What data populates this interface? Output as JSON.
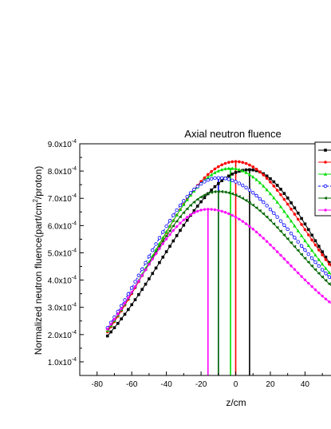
{
  "chart_data": {
    "type": "line",
    "title": "Axial neutron fluence",
    "xlabel": "z/cm",
    "ylabel_main": "Normalized neutron fluence(part/cm",
    "ylabel_sup": "2",
    "ylabel_tail": "/proton)",
    "xlim": [
      -90,
      55
    ],
    "ylim": [
      0.5,
      9.0
    ],
    "y_exponent": "-4",
    "x_ticks": [
      -80,
      -60,
      -40,
      -20,
      0,
      20,
      40
    ],
    "y_ticks": [
      {
        "value": 1.0,
        "mantissa": "1.0x10"
      },
      {
        "value": 2.0,
        "mantissa": "2.0x10"
      },
      {
        "value": 3.0,
        "mantissa": "3.0x10"
      },
      {
        "value": 4.0,
        "mantissa": "4.0x10"
      },
      {
        "value": 5.0,
        "mantissa": "5.0x10"
      },
      {
        "value": 6.0,
        "mantissa": "6.0x10"
      },
      {
        "value": 7.0,
        "mantissa": "7.0x10"
      },
      {
        "value": 8.0,
        "mantissa": "8.0x10"
      },
      {
        "value": 9.0,
        "mantissa": "9.0x10"
      }
    ],
    "grid": false,
    "legend_position": "top-right",
    "series": [
      {
        "color": "#000000",
        "marker": "square",
        "peak_z": 8,
        "peak": 8.05,
        "start_value": 1.95,
        "end_value": 4.55,
        "sigma_left": 51,
        "sigma_right": 36,
        "dashed": false
      },
      {
        "color": "#ff0000",
        "marker": "circle",
        "peak_z": 0,
        "peak": 8.35,
        "start_value": 2.1,
        "end_value": 4.5,
        "sigma_left": 49,
        "sigma_right": 39,
        "dashed": false
      },
      {
        "color": "#00dd00",
        "marker": "triangle",
        "peak_z": -3,
        "peak": 8.1,
        "start_value": 2.15,
        "end_value": 4.2,
        "sigma_left": 47,
        "sigma_right": 39,
        "dashed": false
      },
      {
        "color": "#0000ff",
        "marker": "circle-open",
        "peak_z": -10,
        "peak": 7.75,
        "start_value": 2.25,
        "end_value": 4.05,
        "sigma_left": 43,
        "sigma_right": 44,
        "dashed": true
      },
      {
        "color": "#006600",
        "marker": "triangle-left",
        "peak_z": -10,
        "peak": 7.25,
        "start_value": 2.2,
        "end_value": 3.8,
        "sigma_left": 43,
        "sigma_right": 45,
        "dashed": false
      },
      {
        "color": "#ff00ff",
        "marker": "star",
        "peak_z": -16,
        "peak": 6.6,
        "start_value": 2.2,
        "end_value": 3.15,
        "sigma_left": 41,
        "sigma_right": 46,
        "dashed": false
      }
    ],
    "x_start": -74,
    "x_end": 60,
    "x_step": 2
  }
}
